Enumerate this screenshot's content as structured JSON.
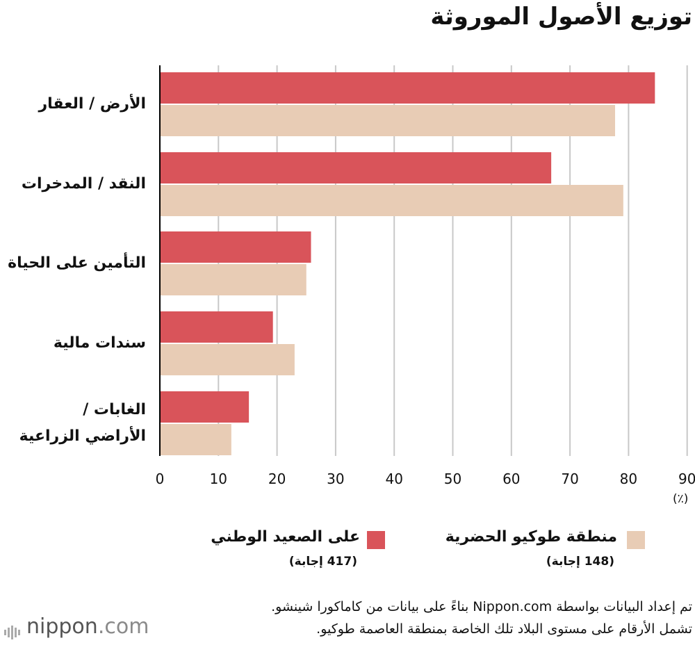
{
  "title": "توزيع الأصول الموروثة",
  "unit_label": "(٪)",
  "colors": {
    "series1": "#d9545a",
    "series2": "#e8ccb5",
    "grid": "#c8c8c8",
    "axis": "#000000"
  },
  "legend": [
    {
      "name": "على الصعيد الوطني",
      "count": "(417 إجابة)"
    },
    {
      "name": "منطقة طوكيو الحضرية",
      "count": "(148 إجابة)"
    }
  ],
  "notes": [
    "تم إعداد البيانات بواسطة Nippon.com بناءً على بيانات من كاماكورا شينشو.",
    "تشمل الأرقام على مستوى البلاد تلك الخاصة بمنطقة العاصمة طوكيو."
  ],
  "logo": {
    "name": "nippon",
    "suffix": ".com"
  },
  "chart_data": {
    "type": "bar",
    "orientation": "horizontal",
    "categories": [
      [
        "الأرض / العقار"
      ],
      [
        "النقد / المدخرات"
      ],
      [
        "التأمين على الحياة"
      ],
      [
        "سندات مالية"
      ],
      [
        "الغابات /",
        "الأراضي الزراعية"
      ]
    ],
    "series": [
      {
        "name": "على الصعيد الوطني",
        "values": [
          84.5,
          66.8,
          25.8,
          19.3,
          15.2
        ]
      },
      {
        "name": "منطقة طوكيو الحضرية",
        "values": [
          77.7,
          79.1,
          25.0,
          23.0,
          12.2
        ]
      }
    ],
    "xlim": [
      0,
      90
    ],
    "xticks": [
      0,
      10,
      20,
      30,
      40,
      50,
      60,
      70,
      80,
      90
    ],
    "grid": true
  }
}
